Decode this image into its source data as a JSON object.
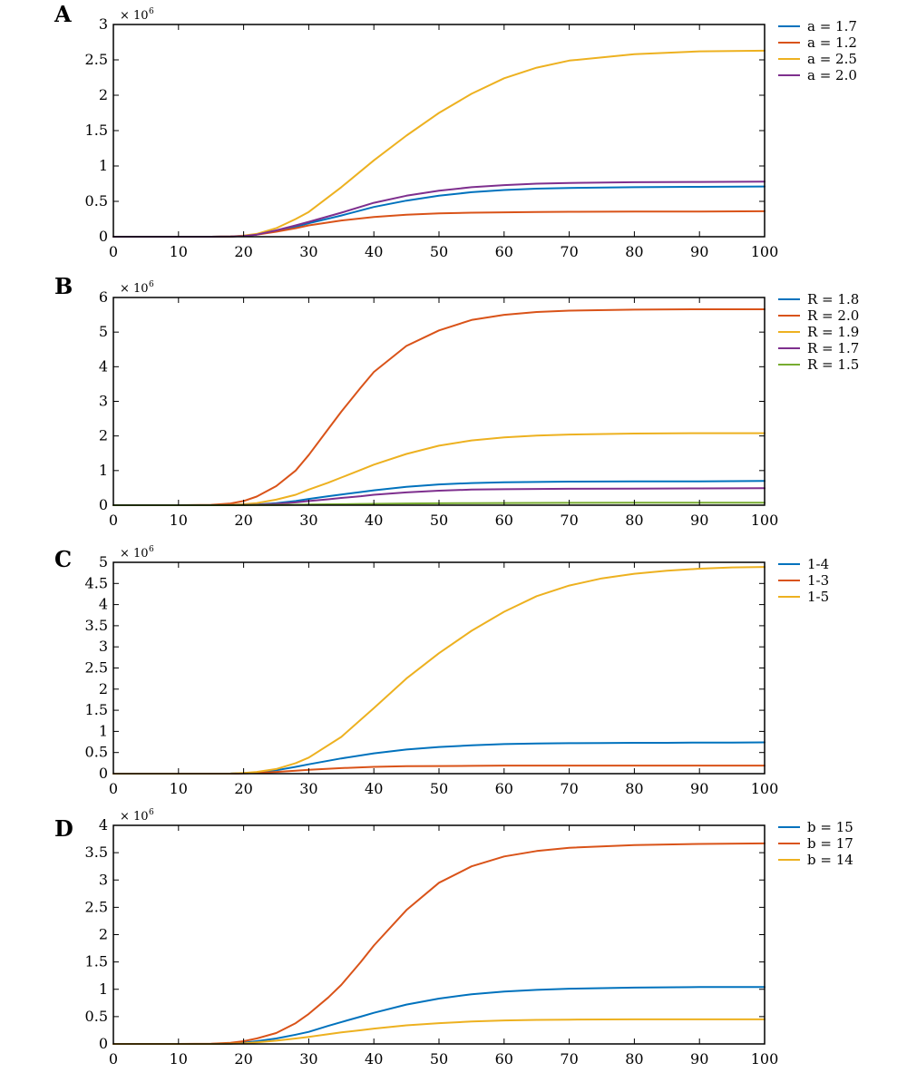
{
  "chart_data": [
    {
      "panel": "A",
      "type": "line",
      "x_ticks": [
        0,
        10,
        20,
        30,
        40,
        50,
        60,
        70,
        80,
        90,
        100
      ],
      "y_ticks": [
        "0",
        "0.5",
        "1",
        "1.5",
        "2",
        "2.5",
        "3"
      ],
      "y_tick_values": [
        0,
        0.5,
        1,
        1.5,
        2,
        2.5,
        3
      ],
      "y_multiplier": "× 10",
      "y_multiplier_exp": "6",
      "xlim": [
        0,
        100
      ],
      "ylim": [
        0,
        3
      ],
      "legend_position": "right",
      "x": [
        0,
        10,
        15,
        18,
        20,
        22,
        25,
        28,
        30,
        35,
        40,
        45,
        50,
        55,
        60,
        65,
        70,
        80,
        90,
        100
      ],
      "series": [
        {
          "name": "a = 1.7",
          "color": "#0072BD",
          "values": [
            0,
            0,
            0,
            0.002,
            0.01,
            0.03,
            0.08,
            0.14,
            0.19,
            0.3,
            0.42,
            0.51,
            0.58,
            0.63,
            0.66,
            0.68,
            0.69,
            0.7,
            0.705,
            0.71
          ]
        },
        {
          "name": "a = 1.2",
          "color": "#D95319",
          "values": [
            0,
            0,
            0,
            0.002,
            0.01,
            0.03,
            0.07,
            0.12,
            0.16,
            0.23,
            0.28,
            0.31,
            0.33,
            0.34,
            0.345,
            0.35,
            0.352,
            0.355,
            0.357,
            0.36
          ]
        },
        {
          "name": "a = 2.5",
          "color": "#EDB120",
          "values": [
            0,
            0,
            0,
            0.003,
            0.015,
            0.04,
            0.12,
            0.25,
            0.35,
            0.7,
            1.08,
            1.43,
            1.75,
            2.02,
            2.24,
            2.39,
            2.49,
            2.58,
            2.62,
            2.63
          ]
        },
        {
          "name": "a = 2.0",
          "color": "#7E2F8E",
          "values": [
            0,
            0,
            0,
            0.002,
            0.01,
            0.03,
            0.09,
            0.16,
            0.21,
            0.34,
            0.48,
            0.58,
            0.65,
            0.7,
            0.73,
            0.75,
            0.76,
            0.77,
            0.775,
            0.78
          ]
        }
      ]
    },
    {
      "panel": "B",
      "type": "line",
      "x_ticks": [
        0,
        10,
        20,
        30,
        40,
        50,
        60,
        70,
        80,
        90,
        100
      ],
      "y_ticks": [
        "0",
        "1",
        "2",
        "3",
        "4",
        "5",
        "6"
      ],
      "y_tick_values": [
        0,
        1,
        2,
        3,
        4,
        5,
        6
      ],
      "y_multiplier": "× 10",
      "y_multiplier_exp": "6",
      "xlim": [
        0,
        100
      ],
      "ylim": [
        0,
        6
      ],
      "legend_position": "right",
      "x": [
        0,
        10,
        15,
        18,
        20,
        22,
        25,
        28,
        30,
        33,
        35,
        38,
        40,
        45,
        50,
        55,
        60,
        65,
        70,
        80,
        90,
        100
      ],
      "series": [
        {
          "name": "R = 1.8",
          "color": "#0072BD",
          "values": [
            0,
            0,
            0,
            0.005,
            0.01,
            0.02,
            0.06,
            0.12,
            0.18,
            0.26,
            0.31,
            0.38,
            0.43,
            0.53,
            0.6,
            0.64,
            0.66,
            0.67,
            0.68,
            0.69,
            0.69,
            0.7
          ]
        },
        {
          "name": "R = 2.0",
          "color": "#D95319",
          "values": [
            0,
            0,
            0.01,
            0.05,
            0.12,
            0.25,
            0.55,
            1.0,
            1.45,
            2.2,
            2.7,
            3.4,
            3.85,
            4.6,
            5.05,
            5.35,
            5.5,
            5.58,
            5.62,
            5.65,
            5.66,
            5.66
          ]
        },
        {
          "name": "R = 1.9",
          "color": "#EDB120",
          "values": [
            0,
            0,
            0,
            0.01,
            0.03,
            0.06,
            0.16,
            0.3,
            0.45,
            0.65,
            0.8,
            1.02,
            1.17,
            1.48,
            1.72,
            1.87,
            1.96,
            2.01,
            2.04,
            2.07,
            2.08,
            2.08
          ]
        },
        {
          "name": "R = 1.7",
          "color": "#7E2F8E",
          "values": [
            0,
            0,
            0,
            0.003,
            0.008,
            0.015,
            0.04,
            0.08,
            0.12,
            0.17,
            0.21,
            0.26,
            0.3,
            0.37,
            0.42,
            0.45,
            0.46,
            0.47,
            0.475,
            0.48,
            0.485,
            0.49
          ]
        },
        {
          "name": "R = 1.5",
          "color": "#77AC30",
          "values": [
            0,
            0,
            0,
            0.001,
            0.002,
            0.004,
            0.008,
            0.014,
            0.018,
            0.025,
            0.03,
            0.036,
            0.04,
            0.05,
            0.056,
            0.06,
            0.063,
            0.065,
            0.067,
            0.07,
            0.07,
            0.07
          ]
        }
      ]
    },
    {
      "panel": "C",
      "type": "line",
      "x_ticks": [
        0,
        10,
        20,
        30,
        40,
        50,
        60,
        70,
        80,
        90,
        100
      ],
      "y_ticks": [
        "0",
        "0.5",
        "1",
        "1.5",
        "2",
        "2.5",
        "3",
        "3.5",
        "4",
        "4.5",
        "5"
      ],
      "y_tick_values": [
        0,
        0.5,
        1,
        1.5,
        2,
        2.5,
        3,
        3.5,
        4,
        4.5,
        5
      ],
      "y_multiplier": "× 10",
      "y_multiplier_exp": "6",
      "xlim": [
        0,
        100
      ],
      "ylim": [
        0,
        5
      ],
      "legend_position": "right",
      "x": [
        0,
        10,
        18,
        20,
        22,
        25,
        28,
        30,
        35,
        40,
        45,
        50,
        55,
        60,
        65,
        70,
        75,
        80,
        85,
        90,
        95,
        100
      ],
      "series": [
        {
          "name": "1-4",
          "color": "#0072BD",
          "values": [
            0,
            0,
            0.002,
            0.01,
            0.03,
            0.08,
            0.16,
            0.22,
            0.36,
            0.48,
            0.57,
            0.63,
            0.67,
            0.7,
            0.715,
            0.72,
            0.725,
            0.73,
            0.73,
            0.735,
            0.735,
            0.74
          ]
        },
        {
          "name": "1-3",
          "color": "#D95319",
          "values": [
            0,
            0,
            0.001,
            0.005,
            0.015,
            0.04,
            0.07,
            0.09,
            0.13,
            0.16,
            0.175,
            0.18,
            0.185,
            0.19,
            0.19,
            0.19,
            0.19,
            0.19,
            0.19,
            0.19,
            0.19,
            0.19
          ]
        },
        {
          "name": "1-5",
          "color": "#EDB120",
          "values": [
            0,
            0,
            0.003,
            0.015,
            0.04,
            0.11,
            0.25,
            0.38,
            0.87,
            1.55,
            2.25,
            2.85,
            3.38,
            3.83,
            4.2,
            4.45,
            4.62,
            4.73,
            4.8,
            4.85,
            4.88,
            4.89
          ]
        }
      ]
    },
    {
      "panel": "D",
      "type": "line",
      "x_ticks": [
        0,
        10,
        20,
        30,
        40,
        50,
        60,
        70,
        80,
        90,
        100
      ],
      "y_ticks": [
        "0",
        "0.5",
        "1",
        "1.5",
        "2",
        "2.5",
        "3",
        "3.5",
        "4"
      ],
      "y_tick_values": [
        0,
        0.5,
        1,
        1.5,
        2,
        2.5,
        3,
        3.5,
        4
      ],
      "y_multiplier": "× 10",
      "y_multiplier_exp": "6",
      "xlim": [
        0,
        100
      ],
      "ylim": [
        0,
        4
      ],
      "legend_position": "right",
      "x": [
        0,
        10,
        15,
        18,
        20,
        22,
        25,
        28,
        30,
        33,
        35,
        38,
        40,
        45,
        50,
        55,
        60,
        65,
        70,
        80,
        90,
        100
      ],
      "series": [
        {
          "name": "b = 15",
          "color": "#0072BD",
          "values": [
            0,
            0,
            0,
            0.005,
            0.02,
            0.05,
            0.1,
            0.17,
            0.22,
            0.33,
            0.4,
            0.5,
            0.57,
            0.72,
            0.83,
            0.91,
            0.96,
            0.99,
            1.01,
            1.03,
            1.04,
            1.04
          ]
        },
        {
          "name": "b = 17",
          "color": "#D95319",
          "values": [
            0,
            0,
            0.005,
            0.02,
            0.05,
            0.1,
            0.2,
            0.38,
            0.55,
            0.85,
            1.08,
            1.5,
            1.8,
            2.45,
            2.95,
            3.25,
            3.43,
            3.53,
            3.59,
            3.64,
            3.66,
            3.67
          ]
        },
        {
          "name": "b = 14",
          "color": "#EDB120",
          "values": [
            0,
            0,
            0,
            0.003,
            0.01,
            0.03,
            0.06,
            0.1,
            0.13,
            0.18,
            0.21,
            0.25,
            0.28,
            0.34,
            0.38,
            0.41,
            0.43,
            0.44,
            0.445,
            0.45,
            0.45,
            0.45
          ]
        }
      ]
    }
  ]
}
